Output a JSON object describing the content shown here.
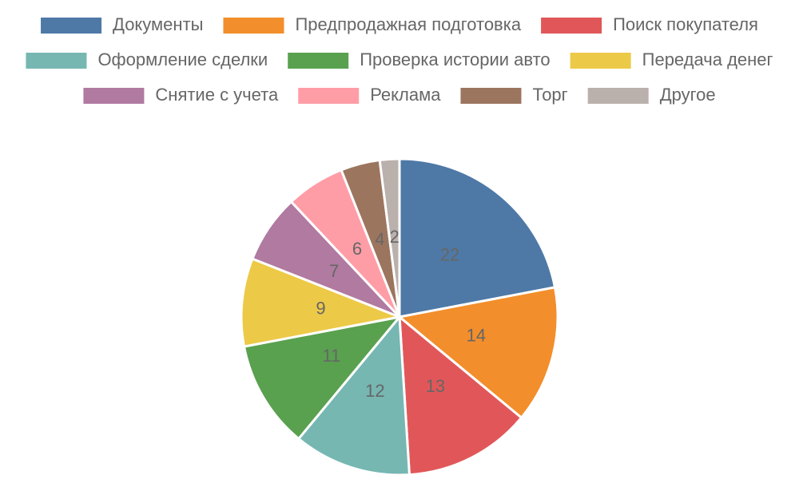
{
  "chart_data": {
    "type": "pie",
    "categories": [
      "Документы",
      "Предпродажная подготовка",
      "Поиск покупателя",
      "Оформление сделки",
      "Проверка истории авто",
      "Передача денег",
      "Снятие с учета",
      "Реклама",
      "Торг",
      "Другое"
    ],
    "values": [
      22,
      14,
      13,
      12,
      11,
      9,
      7,
      6,
      4,
      2
    ],
    "colors": [
      "#4e79a7",
      "#f28e2b",
      "#e15759",
      "#76b7b2",
      "#59a14f",
      "#edc948",
      "#b07aa1",
      "#ff9da7",
      "#9c755f",
      "#bab0ac"
    ],
    "legend": "top"
  }
}
